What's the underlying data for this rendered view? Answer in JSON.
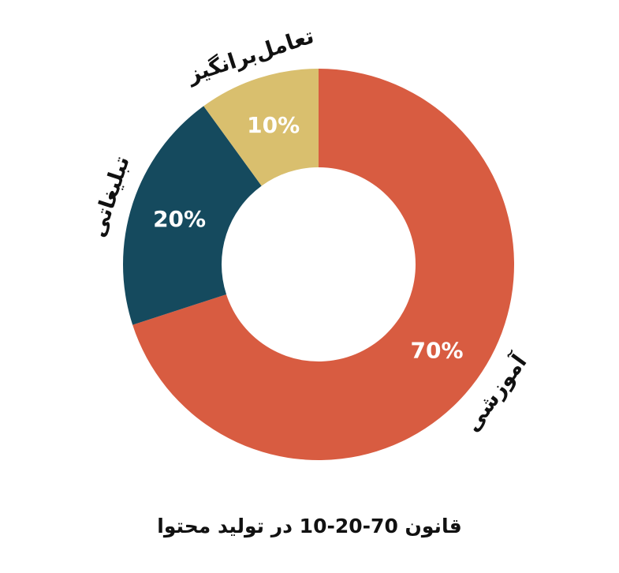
{
  "chart_data": {
    "type": "pie",
    "donut": true,
    "categories": [
      "آموزشی",
      "تبلیغاتی",
      "تعامل‌برانگیز"
    ],
    "values": [
      70,
      20,
      10
    ],
    "value_labels": [
      "70%",
      "20%",
      "10%"
    ],
    "colors": [
      "#D85C41",
      "#154A5E",
      "#D9BF6E"
    ],
    "title": "",
    "caption": "قانون 70-20-10 در تولید محتوا",
    "legend": "none"
  }
}
